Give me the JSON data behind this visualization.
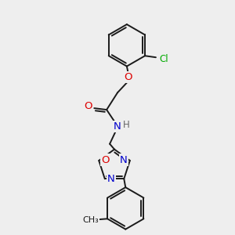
{
  "bg_color": "#eeeeee",
  "bond_color": "#1a1a1a",
  "atom_colors": {
    "O": "#dd0000",
    "N": "#0000cc",
    "Cl": "#00aa00",
    "C": "#1a1a1a",
    "H": "#666666"
  },
  "figsize": [
    3.0,
    3.0
  ],
  "dpi": 100
}
